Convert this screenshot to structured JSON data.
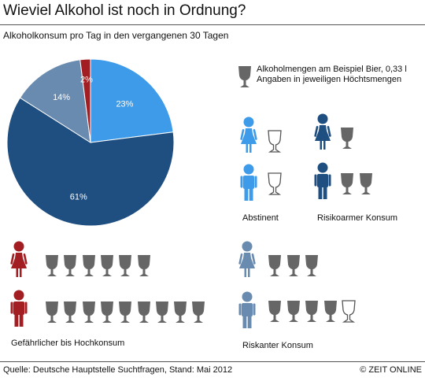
{
  "title": "Wieviel Alkohol ist noch in Ordnung?",
  "subtitle": "Alkoholkonsum pro Tag in den vergangenen 30 Tagen",
  "legend": {
    "line1": "Alkoholmengen am Beispiel Bier, 0,33 l",
    "line2": "Angaben in jeweiligen Höchtsmengen",
    "icon": "beer-glass-icon"
  },
  "groups": [
    {
      "label": "Abstinent",
      "color": "#3d9be9",
      "female_glasses": 1,
      "male_glasses": 1,
      "empty_glasses": true
    },
    {
      "label": "Risikoarmer Konsum",
      "color": "#1f4e80",
      "female_glasses": 1,
      "male_glasses": 2
    },
    {
      "label": "Gefährlicher bis Hochkonsum",
      "color": "#a31e22",
      "female_glasses": 6,
      "male_glasses": 9
    },
    {
      "label": "Riskanter Konsum",
      "color": "#6a8bb0",
      "female_glasses": 3,
      "male_glasses": 5
    }
  ],
  "chart_data": {
    "type": "pie",
    "title": "Wieviel Alkohol ist noch in Ordnung?",
    "subtitle": "Alkoholkonsum pro Tag in den vergangenen 30 Tagen",
    "slices": [
      {
        "name": "Abstinent",
        "value": 23,
        "label": "23%",
        "color": "#3d9be9"
      },
      {
        "name": "Risikoarmer Konsum",
        "value": 61,
        "label": "61%",
        "color": "#1f4e80"
      },
      {
        "name": "Riskanter Konsum",
        "value": 14,
        "label": "14%",
        "color": "#6a8bb0"
      },
      {
        "name": "Gefährlicher bis Hochkonsum",
        "value": 2,
        "label": "2%",
        "color": "#a31e22"
      }
    ]
  },
  "footer": {
    "source": "Quelle: Deutsche Hauptstelle Suchtfragen, Stand: Mai 2012",
    "brand": "© ZEIT ONLINE"
  }
}
